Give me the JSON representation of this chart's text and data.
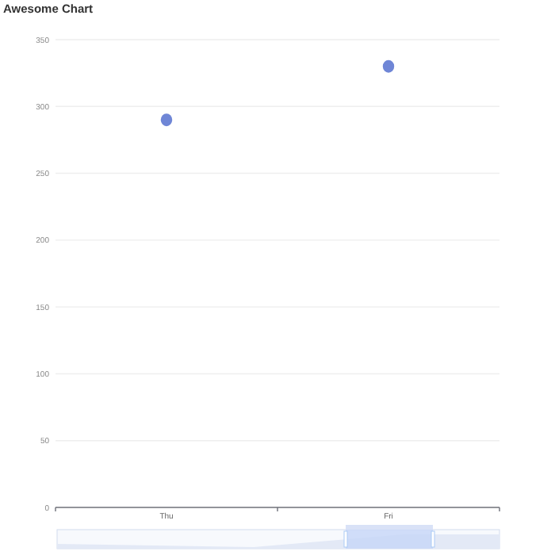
{
  "chart_data": {
    "type": "scatter",
    "title": "Awesome Chart",
    "categories": [
      "Thu",
      "Fri"
    ],
    "series": [
      {
        "color": "#6f86d6",
        "values": [
          290,
          330
        ]
      }
    ],
    "ylim": [
      0,
      350
    ],
    "yticks": [
      0,
      50,
      100,
      150,
      200,
      250,
      300,
      350
    ],
    "grid": "y",
    "marker": "circle"
  }
}
